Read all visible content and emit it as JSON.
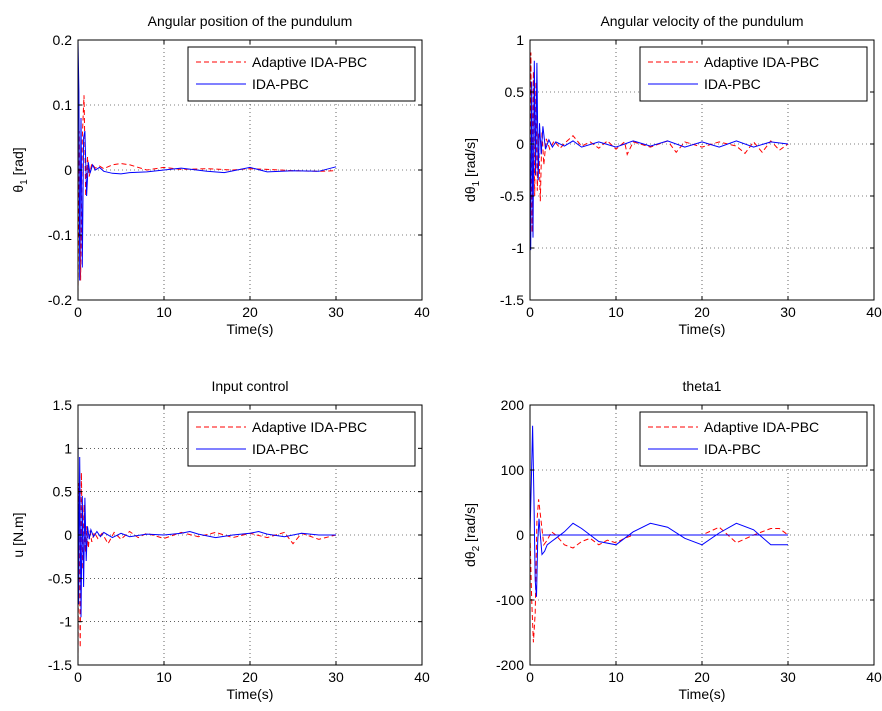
{
  "chart_data": [
    {
      "type": "line",
      "title": "Angular position of the pundulum",
      "xlabel": "Time(s)",
      "ylabel": {
        "main": "θ",
        "sub": "1",
        "unit": " [rad]"
      },
      "xlim": [
        0,
        40
      ],
      "ylim": [
        -0.2,
        0.2
      ],
      "xticks": [
        0,
        10,
        20,
        30,
        40
      ],
      "yticks": [
        -0.2,
        -0.1,
        0,
        0.1,
        0.2
      ],
      "ytick_labels": [
        "-0.2",
        "-0.1",
        "0",
        "0.1",
        "0.2"
      ],
      "grid": true,
      "legend": "top-right",
      "series": [
        {
          "name": "Adaptive IDA-PBC",
          "color": "#ff0000",
          "dash": "dashed",
          "x": [
            0,
            0.15,
            0.3,
            0.5,
            0.7,
            0.9,
            1.1,
            1.3,
            1.6,
            2,
            2.5,
            3,
            4,
            5,
            6,
            8,
            10,
            12,
            15,
            18,
            20,
            22,
            25,
            28,
            30
          ],
          "y": [
            -0.19,
            0.06,
            -0.17,
            0.05,
            0.115,
            -0.04,
            0.02,
            -0.01,
            0.01,
            0.003,
            0.006,
            0.002,
            0.008,
            0.01,
            0.008,
            0.0,
            0.004,
            0.001,
            0.002,
            0.0,
            0.002,
            0.001,
            -0.001,
            -0.002,
            -0.001
          ]
        },
        {
          "name": "IDA-PBC",
          "color": "#0000ff",
          "dash": "solid",
          "x": [
            0,
            0.1,
            0.2,
            0.35,
            0.5,
            0.65,
            0.8,
            1.0,
            1.2,
            1.4,
            1.7,
            2,
            2.5,
            3,
            4,
            5,
            6,
            8,
            10,
            12,
            15,
            17,
            20,
            22,
            25,
            28,
            30
          ],
          "y": [
            0.2,
            0.12,
            -0.17,
            0.08,
            -0.15,
            0.05,
            0.06,
            -0.04,
            0.012,
            -0.005,
            0.008,
            0.0,
            0.004,
            -0.002,
            -0.005,
            -0.006,
            -0.004,
            -0.003,
            0.0,
            0.003,
            -0.002,
            -0.004,
            0.004,
            -0.003,
            -0.001,
            -0.002,
            0.005
          ]
        }
      ]
    },
    {
      "type": "line",
      "title": "Angular velocity of the pundulum",
      "xlabel": "Time(s)",
      "ylabel": {
        "main": "dθ",
        "sub": "1",
        "unit": " [rad/s]"
      },
      "xlim": [
        0,
        40
      ],
      "ylim": [
        -1.5,
        1
      ],
      "xticks": [
        0,
        10,
        20,
        30,
        40
      ],
      "yticks": [
        -1.5,
        -1,
        -0.5,
        0,
        0.5,
        1
      ],
      "ytick_labels": [
        "-1.5",
        "-1",
        "-0.5",
        "0",
        "0.5",
        "1"
      ],
      "grid": true,
      "legend": "top-right",
      "series": [
        {
          "name": "Adaptive IDA-PBC",
          "color": "#ff0000",
          "dash": "dashed",
          "x": [
            0,
            0.1,
            0.25,
            0.4,
            0.55,
            0.7,
            0.85,
            1.0,
            1.2,
            1.4,
            1.6,
            1.9,
            2.3,
            2.8,
            3.5,
            4.2,
            5,
            6,
            7,
            8,
            9,
            10,
            11,
            11.3,
            12,
            14,
            16,
            17,
            18,
            20,
            22,
            24,
            25,
            26,
            27,
            28,
            29,
            30
          ],
          "y": [
            -0.6,
            0.88,
            -0.85,
            0.7,
            -0.5,
            0.6,
            -0.45,
            0.1,
            -0.55,
            0.12,
            -0.2,
            0.05,
            -0.05,
            0.03,
            -0.04,
            0.02,
            0.08,
            -0.02,
            0.02,
            -0.04,
            0.03,
            -0.05,
            0.02,
            -0.1,
            0.02,
            -0.03,
            0.03,
            -0.08,
            0.02,
            -0.03,
            0.02,
            -0.02,
            -0.09,
            0.02,
            -0.08,
            0.03,
            -0.06,
            0.0
          ]
        },
        {
          "name": "IDA-PBC",
          "color": "#0000ff",
          "dash": "solid",
          "x": [
            0,
            0.08,
            0.2,
            0.35,
            0.5,
            0.65,
            0.8,
            0.95,
            1.1,
            1.3,
            1.5,
            1.8,
            2.2,
            2.6,
            3,
            4,
            5,
            6,
            8,
            10,
            12,
            14,
            16,
            18,
            20,
            22,
            24,
            26,
            28,
            30
          ],
          "y": [
            0.0,
            -1.02,
            0.6,
            -0.9,
            0.8,
            -0.3,
            0.78,
            -0.35,
            0.2,
            -0.1,
            0.17,
            -0.05,
            0.04,
            -0.03,
            0.02,
            -0.02,
            0.03,
            -0.03,
            0.02,
            -0.03,
            0.03,
            -0.02,
            0.03,
            -0.03,
            0.02,
            -0.03,
            0.03,
            -0.03,
            0.02,
            0.0
          ]
        }
      ]
    },
    {
      "type": "line",
      "title": "Input control",
      "xlabel": "Time(s)",
      "ylabel": {
        "main": "u [N.m]",
        "sub": "",
        "unit": ""
      },
      "xlim": [
        0,
        40
      ],
      "ylim": [
        -1.5,
        1.5
      ],
      "xticks": [
        0,
        10,
        20,
        30,
        40
      ],
      "yticks": [
        -1.5,
        -1,
        -0.5,
        0,
        0.5,
        1,
        1.5
      ],
      "ytick_labels": [
        "-1.5",
        "-1",
        "-0.5",
        "0",
        "0.5",
        "1",
        "1.5"
      ],
      "grid": true,
      "legend": "top-right",
      "series": [
        {
          "name": "Adaptive IDA-PBC",
          "color": "#ff0000",
          "dash": "dashed",
          "x": [
            0,
            0.1,
            0.25,
            0.4,
            0.55,
            0.7,
            0.85,
            1.0,
            1.2,
            1.4,
            1.6,
            1.9,
            2.3,
            2.8,
            3.5,
            4.2,
            5,
            6,
            7,
            8,
            10,
            12,
            14,
            16,
            18,
            20,
            22,
            24,
            25,
            26,
            28,
            30
          ],
          "y": [
            -1.45,
            0.6,
            -1.3,
            0.72,
            -0.4,
            0.35,
            -0.2,
            0.1,
            -0.15,
            0.05,
            -0.08,
            0.03,
            -0.04,
            0.02,
            -0.1,
            0.03,
            -0.05,
            0.04,
            -0.03,
            0.02,
            -0.04,
            0.03,
            -0.02,
            0.03,
            -0.03,
            0.02,
            -0.03,
            0.03,
            -0.1,
            0.02,
            -0.05,
            0.0
          ]
        },
        {
          "name": "IDA-PBC",
          "color": "#0000ff",
          "dash": "solid",
          "x": [
            0,
            0.08,
            0.2,
            0.35,
            0.5,
            0.65,
            0.8,
            0.95,
            1.1,
            1.3,
            1.5,
            1.8,
            2.2,
            2.6,
            3,
            4,
            5,
            6,
            8,
            10,
            12,
            13,
            14,
            16,
            18,
            20,
            21,
            22,
            24,
            26,
            28,
            30
          ],
          "y": [
            1.15,
            -0.8,
            0.9,
            -0.95,
            0.45,
            -0.6,
            0.43,
            -0.3,
            0.1,
            -0.05,
            0.06,
            -0.02,
            0.04,
            -0.02,
            0.03,
            -0.03,
            0.02,
            -0.02,
            0.01,
            0.0,
            0.02,
            0.04,
            0.01,
            -0.03,
            0.0,
            0.02,
            0.04,
            0.01,
            -0.02,
            0.02,
            0.0,
            0.0
          ]
        }
      ]
    },
    {
      "type": "line",
      "title": "theta1",
      "xlabel": "Time(s)",
      "ylabel": {
        "main": "dθ",
        "sub": "2",
        "unit": " [rad/s]"
      },
      "xlim": [
        0,
        40
      ],
      "ylim": [
        -200,
        200
      ],
      "xticks": [
        0,
        10,
        20,
        30,
        40
      ],
      "yticks": [
        -200,
        -100,
        0,
        100,
        200
      ],
      "ytick_labels": [
        "-200",
        "-100",
        "0",
        "100",
        "200"
      ],
      "grid": true,
      "legend": "top-right",
      "series": [
        {
          "name": "Adaptive IDA-PBC",
          "color": "#ff0000",
          "dash": "dashed",
          "x": [
            0,
            0.2,
            0.4,
            0.6,
            0.8,
            1.0,
            1.3,
            1.6,
            2.0,
            2.5,
            3,
            4,
            5,
            6,
            7,
            8,
            9,
            10,
            11,
            12,
            14,
            16,
            18,
            20,
            22,
            24,
            26,
            28,
            29,
            30
          ],
          "y": [
            0,
            -100,
            -165,
            -120,
            20,
            55,
            20,
            -15,
            -8,
            5,
            0,
            -15,
            -20,
            -10,
            -5,
            -15,
            -8,
            -12,
            -5,
            0,
            0,
            0,
            0,
            0,
            12,
            -12,
            0,
            10,
            10,
            0
          ]
        },
        {
          "name": "IDA-PBC",
          "color": "#0000ff",
          "dash": "solid",
          "x": [
            0,
            0.15,
            0.3,
            0.45,
            0.6,
            0.75,
            0.9,
            1.05,
            1.2,
            1.4,
            1.7,
            2,
            2.5,
            3,
            4,
            5,
            6,
            8,
            10,
            12,
            14,
            16,
            18,
            20,
            22,
            24,
            26,
            28,
            30
          ],
          "y": [
            0,
            80,
            168,
            60,
            -70,
            -95,
            -10,
            25,
            0,
            -30,
            -25,
            -15,
            -10,
            -5,
            5,
            18,
            10,
            -10,
            -15,
            5,
            18,
            12,
            -5,
            -15,
            3,
            18,
            8,
            -15,
            -15
          ]
        },
        {
          "name": "",
          "color": "#0000ff",
          "dash": "solid",
          "x": [
            1.5,
            30
          ],
          "y": [
            0,
            0
          ]
        }
      ]
    }
  ]
}
